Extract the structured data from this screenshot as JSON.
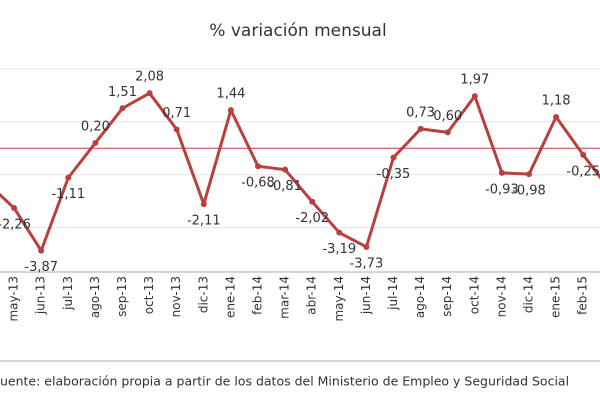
{
  "chart_data": {
    "type": "line",
    "title": "% variación mensual",
    "categories": [
      null,
      "may-13",
      "jun-13",
      "jul-13",
      "ago-13",
      "sep-13",
      "oct-13",
      "nov-13",
      "dic-13",
      "ene-14",
      "feb-14",
      "mar-14",
      "abr-14",
      "may-14",
      "jun-14",
      "jul-14",
      "ago-14",
      "sep-14",
      "oct-14",
      "nov-14",
      "dic-14",
      "ene-15",
      "feb-15",
      null
    ],
    "series": [
      {
        "name": "% variación mensual",
        "color": "#b8403e",
        "values": [
          -1.3,
          -2.26,
          -3.87,
          -1.11,
          0.2,
          1.51,
          2.08,
          0.71,
          -2.11,
          1.44,
          -0.68,
          -0.81,
          -2.02,
          -3.19,
          -3.73,
          -0.35,
          0.73,
          0.6,
          1.97,
          -0.93,
          -0.98,
          1.18,
          -0.25,
          -1.6
        ],
        "value_labels": [
          null,
          "-2,26",
          "-3,87",
          "-1,11",
          "0,20",
          "1,51",
          "2,08",
          "0,71",
          "-2,11",
          "1,44",
          "-0,68",
          "-0,81",
          "-2,02",
          "-3,19",
          "-3,73",
          "-0,35",
          "0,73",
          "0,60",
          "1,97",
          "-0,93",
          "-0,98",
          "1,18",
          "-0,25",
          null
        ]
      }
    ],
    "ylim": [
      -4.6,
      3.9
    ],
    "yticks": [
      -3,
      -1,
      1,
      3
    ],
    "grid": true,
    "source": "uente: elaboración propia a partir de los datos del Ministerio de Empleo y Seguridad Social"
  }
}
